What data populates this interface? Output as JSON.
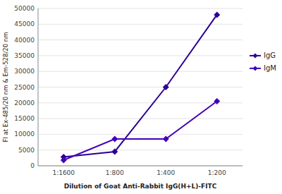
{
  "chart_data": {
    "type": "line",
    "x_label": "Dilution of Goat Anti-Rabbit IgG(H+L)-FITC",
    "y_label": "Fl at Ex-485/20 nm & Em-528/20 nm",
    "categories": [
      "1:1600",
      "1:800",
      "1:400",
      "1:200"
    ],
    "series": [
      {
        "name": "IgG",
        "color": "#2d0094",
        "marker": "diamond",
        "values": [
          2800,
          4500,
          25000,
          48000
        ]
      },
      {
        "name": "IgM",
        "color": "#4400bb",
        "marker": "diamond",
        "values": [
          1800,
          8500,
          8500,
          20500
        ]
      }
    ],
    "ylim": [
      0,
      50000
    ],
    "yticks": [
      0,
      5000,
      10000,
      15000,
      20000,
      25000,
      30000,
      35000,
      40000,
      45000,
      50000
    ],
    "grid": true,
    "legend": "right"
  }
}
